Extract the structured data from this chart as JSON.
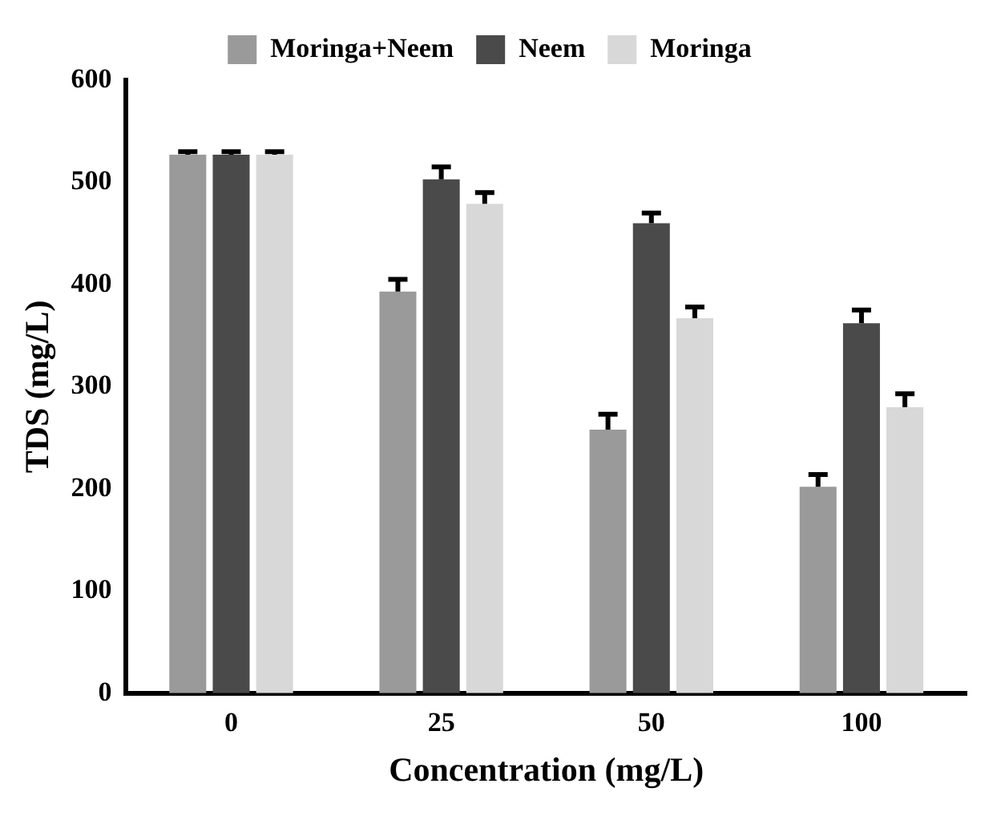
{
  "chart_data": {
    "type": "bar",
    "xlabel": "Concentration (mg/L)",
    "ylabel": "TDS (mg/L)",
    "categories": [
      "0",
      "25",
      "50",
      "100"
    ],
    "series": [
      {
        "name": "Moringa+Neem",
        "color": "#9a9a9a",
        "values": [
          527,
          393,
          258,
          202
        ],
        "errors": [
          [
            527,
            530
          ],
          [
            393,
            405
          ],
          [
            258,
            273
          ],
          [
            202,
            214
          ]
        ]
      },
      {
        "name": "Neem",
        "color": "#4a4a4a",
        "values": [
          527,
          503,
          460,
          362
        ],
        "errors": [
          [
            527,
            530
          ],
          [
            503,
            515
          ],
          [
            460,
            470
          ],
          [
            362,
            375
          ]
        ]
      },
      {
        "name": "Moringa",
        "color": "#d8d8d8",
        "values": [
          527,
          479,
          367,
          280
        ],
        "errors": [
          [
            527,
            530
          ],
          [
            479,
            490
          ],
          [
            367,
            378
          ],
          [
            280,
            293
          ]
        ]
      }
    ],
    "ylim": [
      0,
      600
    ],
    "yticks": [
      0,
      100,
      200,
      300,
      400,
      500,
      600
    ],
    "grid": false,
    "legend": "top"
  }
}
